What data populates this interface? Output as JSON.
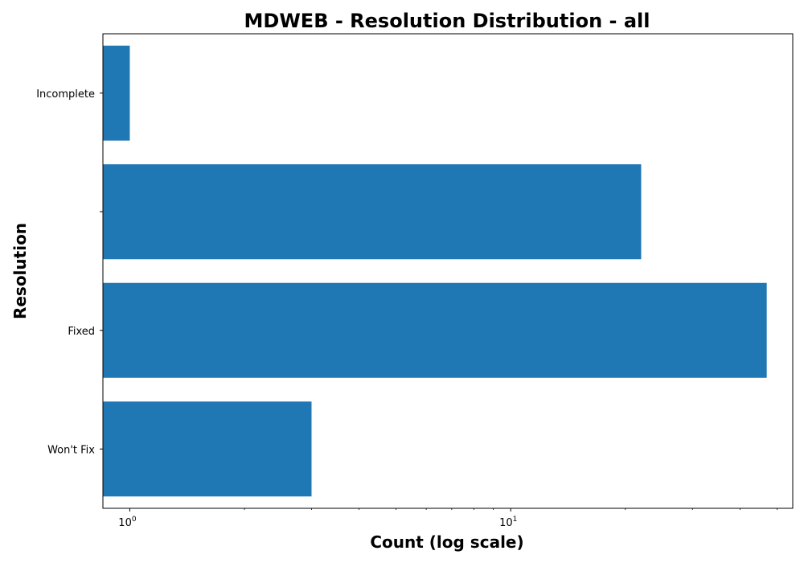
{
  "chart_data": {
    "type": "bar",
    "orientation": "horizontal",
    "title": "MDWEB - Resolution Distribution - all",
    "xlabel": "Count (log scale)",
    "ylabel": "Resolution",
    "xscale": "log",
    "xlim": [
      0.85,
      55
    ],
    "categories": [
      "Incomplete",
      "",
      "Fixed",
      "Won't Fix"
    ],
    "values": [
      1,
      22,
      47,
      3
    ],
    "x_major_ticks": [
      {
        "value": 1,
        "base": "10",
        "exp": "0"
      },
      {
        "value": 10,
        "base": "10",
        "exp": "1"
      }
    ],
    "grid": false,
    "legend": "none",
    "colors": {
      "bar": "#1f77b4",
      "axis": "#000000",
      "background": "#ffffff"
    }
  }
}
